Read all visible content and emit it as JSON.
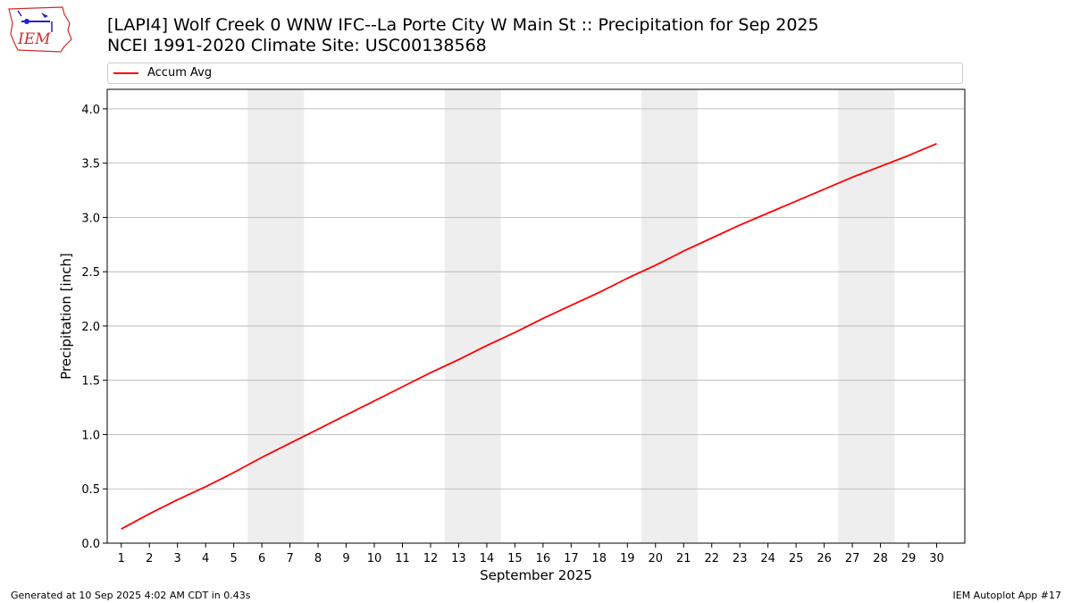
{
  "header": {
    "title_line1": "[LAPI4] Wolf Creek 0 WNW IFC--La Porte City W Main St :: Precipitation for Sep 2025",
    "title_line2": "NCEI 1991-2020 Climate Site: USC00138568"
  },
  "logo": {
    "text": "IEM",
    "icon": "iem-iowa-logo-icon"
  },
  "footer": {
    "left": "Generated at 10 Sep 2025 4:02 AM CDT in 0.43s",
    "right": "IEM Autoplot App #17"
  },
  "colors": {
    "series": "#ff0000",
    "weekend_shade": "#eeeeee",
    "grid": "#b0b0b0"
  },
  "chart_data": {
    "type": "line",
    "title": "[LAPI4] Wolf Creek 0 WNW IFC--La Porte City W Main St :: Precipitation for Sep 2025",
    "subtitle": "NCEI 1991-2020 Climate Site: USC00138568",
    "xlabel": "September 2025",
    "ylabel": "Precipitation [inch]",
    "x": [
      1,
      2,
      3,
      4,
      5,
      6,
      7,
      8,
      9,
      10,
      11,
      12,
      13,
      14,
      15,
      16,
      17,
      18,
      19,
      20,
      21,
      22,
      23,
      24,
      25,
      26,
      27,
      28,
      29,
      30
    ],
    "xlim": [
      0.5,
      31
    ],
    "ylim": [
      0,
      4.18
    ],
    "yticks": [
      0.0,
      0.5,
      1.0,
      1.5,
      2.0,
      2.5,
      3.0,
      3.5,
      4.0
    ],
    "ytick_labels": [
      "0.0",
      "0.5",
      "1.0",
      "1.5",
      "2.0",
      "2.5",
      "3.0",
      "3.5",
      "4.0"
    ],
    "xtick_labels": [
      "1",
      "2",
      "3",
      "4",
      "5",
      "6",
      "7",
      "8",
      "9",
      "10",
      "11",
      "12",
      "13",
      "14",
      "15",
      "16",
      "17",
      "18",
      "19",
      "20",
      "21",
      "22",
      "23",
      "24",
      "25",
      "26",
      "27",
      "28",
      "29",
      "30"
    ],
    "grid": "y",
    "legend_position": "top",
    "weekend_spans": [
      [
        5.5,
        7.5
      ],
      [
        12.5,
        14.5
      ],
      [
        19.5,
        21.5
      ],
      [
        26.5,
        28.5
      ]
    ],
    "series": [
      {
        "name": "Accum Avg",
        "color": "#ff0000",
        "values": [
          0.13,
          0.27,
          0.4,
          0.52,
          0.65,
          0.79,
          0.92,
          1.05,
          1.18,
          1.31,
          1.44,
          1.57,
          1.69,
          1.82,
          1.94,
          2.07,
          2.19,
          2.31,
          2.44,
          2.56,
          2.69,
          2.81,
          2.93,
          3.04,
          3.15,
          3.26,
          3.37,
          3.47,
          3.57,
          3.68
        ]
      }
    ]
  }
}
